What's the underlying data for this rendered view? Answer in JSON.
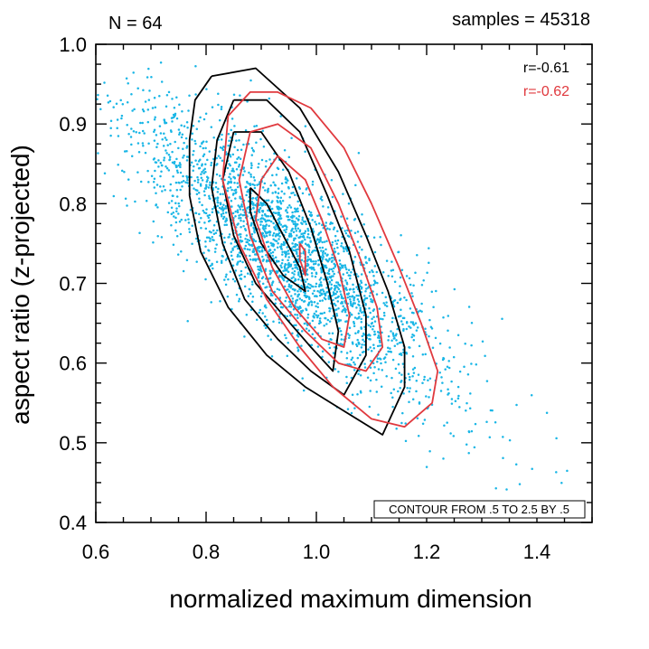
{
  "header": {
    "n_label": "N = 64",
    "samples_label": "samples = 45318"
  },
  "chart_data": {
    "type": "scatter",
    "title": "",
    "xlabel": "normalized maximum dimension",
    "ylabel": "aspect ratio (z-projected)",
    "xlim": [
      0.6,
      1.5
    ],
    "ylim": [
      0.4,
      1.0
    ],
    "xticks": [
      0.6,
      0.8,
      1.0,
      1.2,
      1.4
    ],
    "xtick_labels": [
      "0.6",
      "0.8",
      "1.0",
      "1.2",
      "1.4"
    ],
    "yticks": [
      0.4,
      0.5,
      0.6,
      0.7,
      0.8,
      0.9,
      1.0
    ],
    "ytick_labels": [
      "0.4",
      "0.5",
      "0.6",
      "0.7",
      "0.8",
      "0.9",
      "1.0"
    ],
    "x_minor_step": 0.05,
    "y_minor_step": 0.025,
    "scatter": {
      "name": "samples",
      "color": "#19b6e6",
      "count_drawn": 2600,
      "center": [
        0.95,
        0.74
      ],
      "sd_along": 0.15,
      "sd_across": 0.045,
      "slope": -0.6
    },
    "correlations": [
      {
        "label": "r=-0.61",
        "color": "#000000"
      },
      {
        "label": "r=-0.62",
        "color": "#e0393e"
      }
    ],
    "contour_note": "CONTOUR FROM .5 TO 2.5 BY .5",
    "contours": [
      {
        "color": "#000000",
        "points": [
          [
            0.81,
            0.96
          ],
          [
            0.89,
            0.97
          ],
          [
            0.97,
            0.92
          ],
          [
            1.04,
            0.84
          ],
          [
            1.09,
            0.76
          ],
          [
            1.13,
            0.69
          ],
          [
            1.16,
            0.62
          ],
          [
            1.16,
            0.57
          ],
          [
            1.12,
            0.51
          ],
          [
            1.05,
            0.54
          ],
          [
            0.98,
            0.57
          ],
          [
            0.91,
            0.61
          ],
          [
            0.84,
            0.67
          ],
          [
            0.79,
            0.74
          ],
          [
            0.77,
            0.81
          ],
          [
            0.77,
            0.88
          ],
          [
            0.78,
            0.93
          ],
          [
            0.81,
            0.96
          ]
        ]
      },
      {
        "color": "#000000",
        "points": [
          [
            0.85,
            0.93
          ],
          [
            0.91,
            0.93
          ],
          [
            0.97,
            0.89
          ],
          [
            1.02,
            0.81
          ],
          [
            1.06,
            0.74
          ],
          [
            1.09,
            0.66
          ],
          [
            1.09,
            0.61
          ],
          [
            1.05,
            0.56
          ],
          [
            0.99,
            0.59
          ],
          [
            0.93,
            0.63
          ],
          [
            0.87,
            0.68
          ],
          [
            0.83,
            0.75
          ],
          [
            0.81,
            0.82
          ],
          [
            0.82,
            0.88
          ],
          [
            0.85,
            0.93
          ]
        ]
      },
      {
        "color": "#000000",
        "points": [
          [
            0.85,
            0.89
          ],
          [
            0.9,
            0.89
          ],
          [
            0.95,
            0.84
          ],
          [
            0.99,
            0.77
          ],
          [
            1.02,
            0.7
          ],
          [
            1.04,
            0.64
          ],
          [
            1.03,
            0.59
          ],
          [
            0.99,
            0.62
          ],
          [
            0.94,
            0.66
          ],
          [
            0.89,
            0.7
          ],
          [
            0.85,
            0.76
          ],
          [
            0.83,
            0.83
          ],
          [
            0.85,
            0.89
          ]
        ]
      },
      {
        "color": "#000000",
        "points": [
          [
            0.88,
            0.82
          ],
          [
            0.91,
            0.8
          ],
          [
            0.94,
            0.76
          ],
          [
            0.97,
            0.72
          ],
          [
            0.98,
            0.69
          ],
          [
            0.94,
            0.71
          ],
          [
            0.9,
            0.75
          ],
          [
            0.88,
            0.79
          ],
          [
            0.88,
            0.82
          ]
        ]
      },
      {
        "color": "#e0393e",
        "points": [
          [
            0.84,
            0.91
          ],
          [
            0.88,
            0.94
          ],
          [
            0.93,
            0.94
          ],
          [
            0.99,
            0.92
          ],
          [
            1.05,
            0.87
          ],
          [
            1.1,
            0.8
          ],
          [
            1.15,
            0.72
          ],
          [
            1.19,
            0.65
          ],
          [
            1.22,
            0.59
          ],
          [
            1.21,
            0.55
          ],
          [
            1.16,
            0.52
          ],
          [
            1.1,
            0.53
          ],
          [
            1.03,
            0.57
          ],
          [
            0.97,
            0.62
          ],
          [
            0.91,
            0.68
          ],
          [
            0.86,
            0.75
          ],
          [
            0.83,
            0.83
          ],
          [
            0.84,
            0.91
          ]
        ]
      },
      {
        "color": "#e0393e",
        "points": [
          [
            0.88,
            0.89
          ],
          [
            0.93,
            0.9
          ],
          [
            0.99,
            0.87
          ],
          [
            1.04,
            0.8
          ],
          [
            1.08,
            0.73
          ],
          [
            1.11,
            0.67
          ],
          [
            1.12,
            0.62
          ],
          [
            1.09,
            0.59
          ],
          [
            1.04,
            0.6
          ],
          [
            0.98,
            0.64
          ],
          [
            0.92,
            0.69
          ],
          [
            0.88,
            0.76
          ],
          [
            0.86,
            0.83
          ],
          [
            0.88,
            0.89
          ]
        ]
      },
      {
        "color": "#e0393e",
        "points": [
          [
            0.93,
            0.86
          ],
          [
            0.98,
            0.83
          ],
          [
            1.01,
            0.78
          ],
          [
            1.04,
            0.72
          ],
          [
            1.06,
            0.66
          ],
          [
            1.05,
            0.62
          ],
          [
            1.01,
            0.63
          ],
          [
            0.96,
            0.67
          ],
          [
            0.92,
            0.72
          ],
          [
            0.89,
            0.78
          ],
          [
            0.9,
            0.83
          ],
          [
            0.93,
            0.86
          ]
        ]
      },
      {
        "color": "#e0393e",
        "points": [
          [
            0.97,
            0.75
          ],
          [
            0.98,
            0.74
          ],
          [
            0.98,
            0.71
          ],
          [
            0.97,
            0.73
          ],
          [
            0.97,
            0.75
          ]
        ]
      }
    ]
  }
}
